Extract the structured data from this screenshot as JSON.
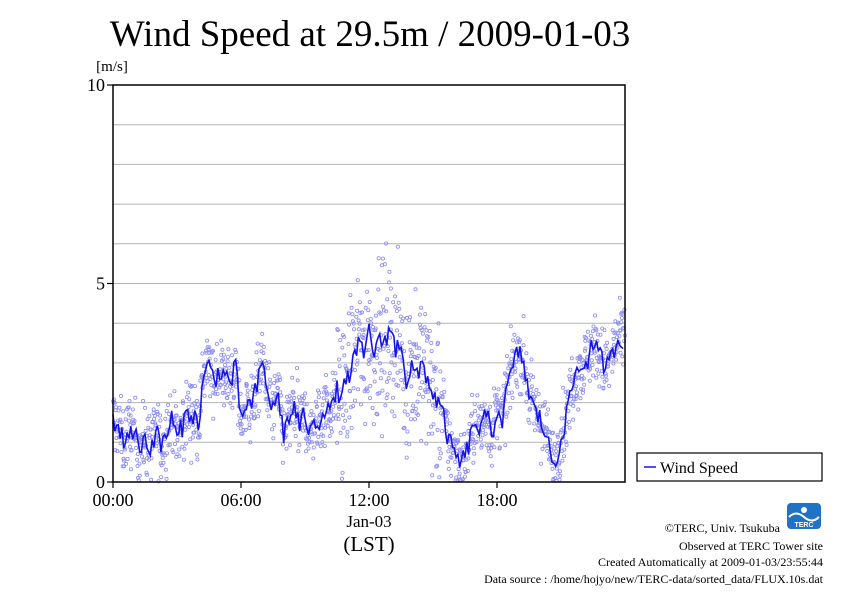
{
  "chart_data": {
    "type": "line+scatter",
    "title": "Wind Speed at 29.5m / 2009-01-03",
    "ylabel": "[m/s]",
    "xlabel": "(LST)",
    "x_date_label": "Jan-03",
    "ylim": [
      0,
      10
    ],
    "xlim_hours": [
      0,
      24
    ],
    "y_ticks": [
      {
        "value": 0,
        "label": "0"
      },
      {
        "value": 5,
        "label": "5"
      },
      {
        "value": 10,
        "label": "10"
      }
    ],
    "x_ticks": [
      {
        "value": 0,
        "label": "00:00"
      },
      {
        "value": 6,
        "label": "06:00"
      },
      {
        "value": 12,
        "label": "12:00"
      },
      {
        "value": 18,
        "label": "18:00"
      }
    ],
    "grid": "horizontal every 1 m/s",
    "legend": {
      "placement": "right",
      "label": "Wind Speed"
    },
    "colors": {
      "line": "#1414e6",
      "points": "#8c8cf0"
    },
    "series": [
      {
        "name": "Wind Speed",
        "hours": [
          0.0,
          0.25,
          0.5,
          0.75,
          1.0,
          1.25,
          1.5,
          1.75,
          2.0,
          2.25,
          2.5,
          2.75,
          3.0,
          3.25,
          3.5,
          3.75,
          4.0,
          4.25,
          4.5,
          4.75,
          5.0,
          5.25,
          5.5,
          5.75,
          6.0,
          6.25,
          6.5,
          6.75,
          7.0,
          7.25,
          7.5,
          7.75,
          8.0,
          8.25,
          8.5,
          8.75,
          9.0,
          9.25,
          9.5,
          9.75,
          10.0,
          10.25,
          10.5,
          10.75,
          11.0,
          11.25,
          11.5,
          11.75,
          12.0,
          12.25,
          12.5,
          12.75,
          13.0,
          13.25,
          13.5,
          13.75,
          14.0,
          14.25,
          14.5,
          14.75,
          15.0,
          15.25,
          15.5,
          15.75,
          16.0,
          16.25,
          16.5,
          16.75,
          17.0,
          17.25,
          17.5,
          17.75,
          18.0,
          18.25,
          18.5,
          18.75,
          19.0,
          19.25,
          19.5,
          19.75,
          20.0,
          20.25,
          20.5,
          20.75,
          21.0,
          21.25,
          21.5,
          21.75,
          22.0,
          22.25,
          22.5,
          22.75,
          23.0,
          23.25,
          23.5,
          23.75
        ],
        "values": [
          1.6,
          1.4,
          1.0,
          1.3,
          1.2,
          0.9,
          1.1,
          0.8,
          1.3,
          0.9,
          1.2,
          1.6,
          1.1,
          1.4,
          1.8,
          1.7,
          1.4,
          2.7,
          2.9,
          2.6,
          2.8,
          2.7,
          2.5,
          2.9,
          1.5,
          2.0,
          1.9,
          2.4,
          3.0,
          2.3,
          1.8,
          2.2,
          1.2,
          1.6,
          1.9,
          1.4,
          1.7,
          1.2,
          1.5,
          1.6,
          2.0,
          1.8,
          2.3,
          2.2,
          2.6,
          3.0,
          3.4,
          3.2,
          3.8,
          3.3,
          3.5,
          3.6,
          3.9,
          3.3,
          3.6,
          2.5,
          2.9,
          2.6,
          3.0,
          2.6,
          2.2,
          2.0,
          1.6,
          1.0,
          0.7,
          0.5,
          0.6,
          1.1,
          1.5,
          1.3,
          1.7,
          1.2,
          1.8,
          1.6,
          2.4,
          2.9,
          3.3,
          3.0,
          2.2,
          1.8,
          1.6,
          1.3,
          0.7,
          0.4,
          1.2,
          1.6,
          2.4,
          2.8,
          2.9,
          3.1,
          3.5,
          3.2,
          3.0,
          2.9,
          3.4,
          3.6
        ]
      }
    ]
  },
  "credits": [
    "©TERC, Univ. Tsukuba",
    "Observed at TERC Tower site",
    "Created Automatically at 2009-01-03/23:55:44",
    "Data source : /home/hojyo/new/TERC-data/sorted_data/FLUX.10s.dat"
  ],
  "logo_text": "TERC"
}
